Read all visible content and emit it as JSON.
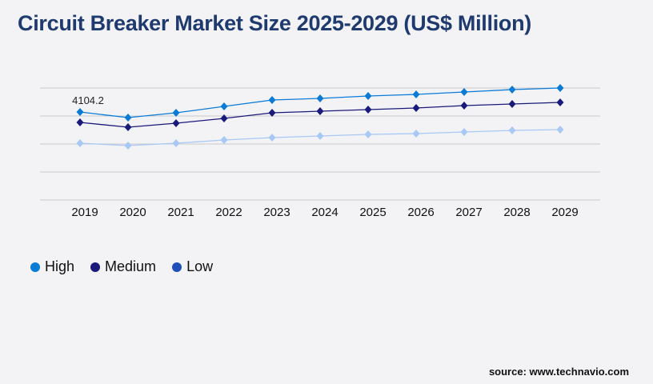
{
  "title": "Circuit Breaker Market Size 2025-2029 (US$ Million)",
  "source": "source: www.technavio.com",
  "chart_data": {
    "type": "line",
    "title": "Circuit Breaker Market Size 2025-2029 (US$ Million)",
    "categories": [
      "2019",
      "2020",
      "2021",
      "2022",
      "2023",
      "2024",
      "2025",
      "2026",
      "2027",
      "2028",
      "2029"
    ],
    "ylim": [
      0,
      5224
    ],
    "grid": true,
    "legend_placement": "bottom-left",
    "annotations": [
      {
        "series": "High",
        "category": "2019",
        "label": "4104.2"
      }
    ],
    "series": [
      {
        "name": "High",
        "color": "#0a7bd6",
        "legend_color": "#0a7bd6",
        "values": [
          4104.2,
          3843,
          4067,
          4365,
          4664,
          4738,
          4850,
          4925,
          5037,
          5149,
          5224
        ]
      },
      {
        "name": "Medium",
        "color": "#1a1a7a",
        "legend_color": "#1a1a7a",
        "values": [
          3619,
          3395,
          3582,
          3806,
          4067,
          4141,
          4216,
          4291,
          4403,
          4477,
          4552
        ]
      },
      {
        "name": "Low",
        "color": "#a8c8f5",
        "legend_color": "#1f4fb8",
        "values": [
          2649,
          2537,
          2649,
          2798,
          2910,
          2985,
          3059,
          3097,
          3171,
          3246,
          3283
        ]
      }
    ]
  }
}
